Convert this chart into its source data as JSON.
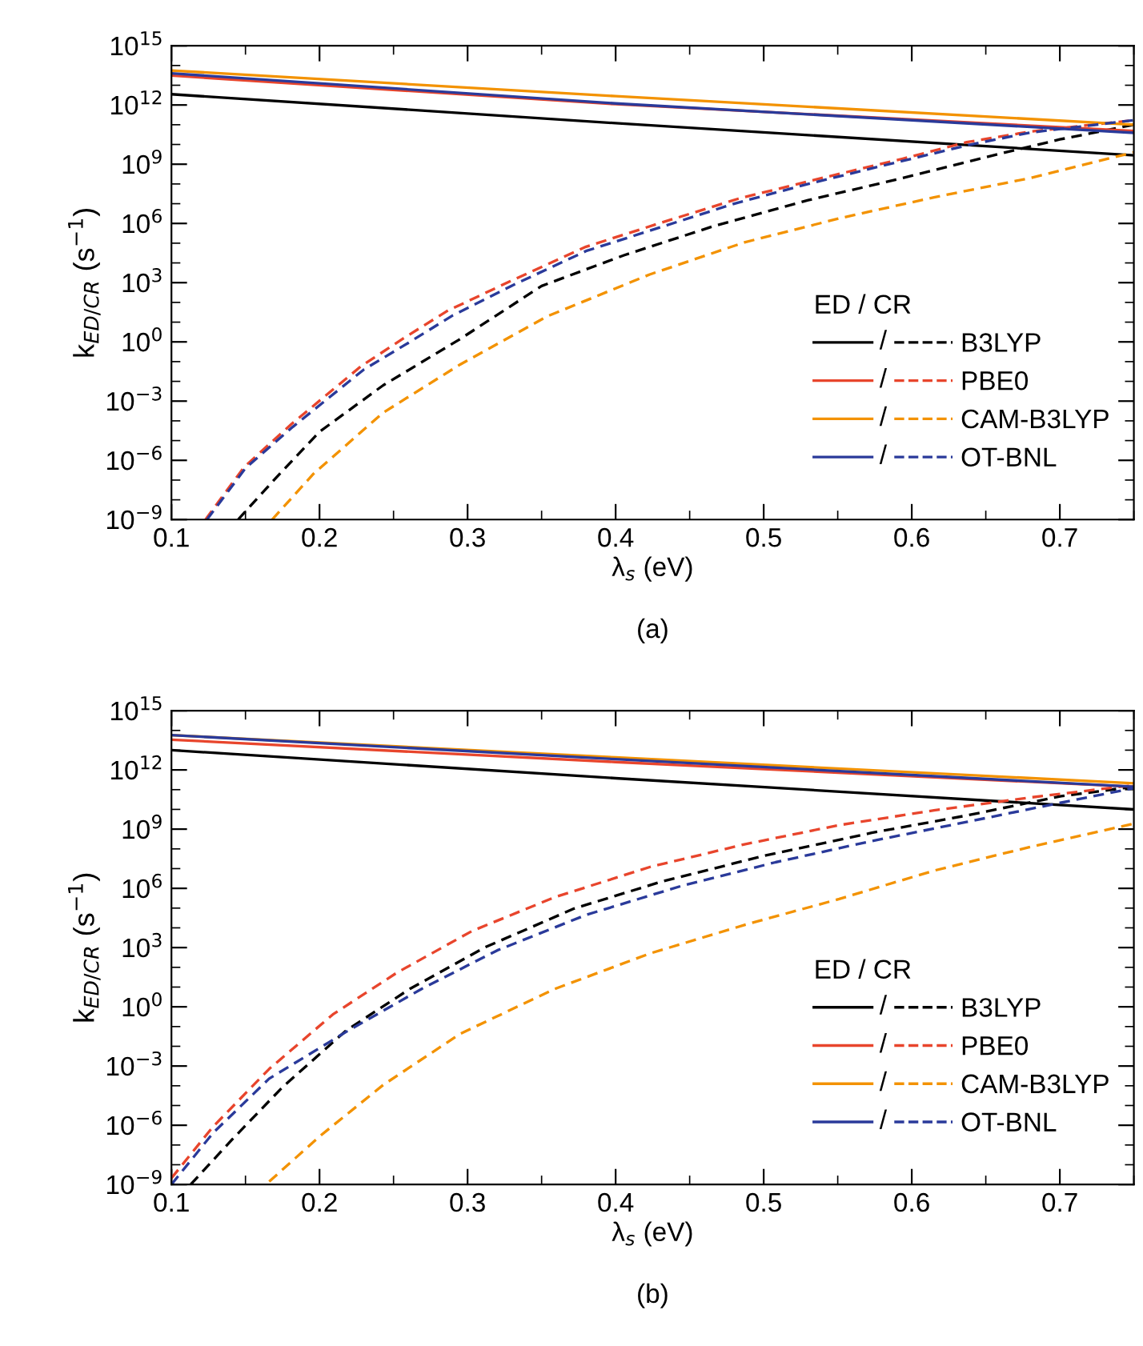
{
  "chart_data": [
    {
      "type": "line",
      "title": "(a)",
      "xlabel": "λ$_{s}$ (eV)",
      "ylabel": "k$_{ED/CR}$ (s$^{−1}$)",
      "legend_title": "ED / CR",
      "annotations": [
        "/"
      ],
      "log": "y",
      "legend": "bottom right",
      "grid": false,
      "xlim": [
        0.1,
        0.75
      ],
      "xticks": [
        0.1,
        0.2,
        0.3,
        0.4,
        0.5,
        0.6,
        0.7
      ],
      "ylim": [
        1e-09,
        1000000000000000.0
      ],
      "yticks": [
        {
          "value": 1e-09,
          "label": "10$^{−9}$"
        },
        {
          "value": 1e-06,
          "label": "10$^{−6}$"
        },
        {
          "value": 0.001,
          "label": "10$^{−3}$"
        },
        {
          "value": 1,
          "label": "10$^{0}$"
        },
        {
          "value": 1000.0,
          "label": "10$^{3}$"
        },
        {
          "value": 1000000.0,
          "label": "10$^{6}$"
        },
        {
          "value": 1000000000.0,
          "label": "10$^{9}$"
        },
        {
          "value": 1000000000000.0,
          "label": "10$^{12}$"
        },
        {
          "value": 1000000000000000.0,
          "label": "10$^{15}$"
        }
      ],
      "series": [
        {
          "color": "#000000",
          "line_style": "solid",
          "x": [
            0.1,
            0.4,
            0.75
          ],
          "values": [
            3500000000000.0,
            120000000000.0,
            2800000000.0
          ]
        },
        {
          "name": "B3LYP",
          "color": "#000000",
          "line_style": "dashed",
          "x": [
            0.145,
            0.171,
            0.2,
            0.243,
            0.295,
            0.35,
            0.406,
            0.466,
            0.53,
            0.594,
            0.658,
            0.7,
            0.75
          ],
          "values": [
            1e-09,
            1.4e-07,
            2.8e-05,
            0.0063,
            1.4,
            680,
            25000.0,
            720000.0,
            15000000.0,
            200000000.0,
            3200000000.0,
            18000000000.0,
            100000000000.0
          ]
        },
        {
          "color": "#e8452c",
          "line_style": "solid",
          "x": [
            0.1,
            0.4,
            0.75
          ],
          "values": [
            31000000000000.0,
            1100000000000.0,
            48000000000.0
          ]
        },
        {
          "name": "PBE0",
          "color": "#e8452c",
          "line_style": "dashed",
          "x": [
            0.123,
            0.149,
            0.181,
            0.228,
            0.256,
            0.286,
            0.329,
            0.38,
            0.431,
            0.483,
            0.534,
            0.594,
            0.637,
            0.68,
            0.75
          ],
          "values": [
            1e-09,
            4.5e-07,
            6.8e-05,
            0.058,
            1.4,
            36,
            1200,
            66000.0,
            1100000.0,
            18000000.0,
            160000000.0,
            1900000000.0,
            13000000000.0,
            45000000000.0,
            170000000000.0
          ]
        },
        {
          "color": "#f39200",
          "line_style": "solid",
          "x": [
            0.1,
            0.4,
            0.75
          ],
          "values": [
            56000000000000.0,
            2800000000000.0,
            100000000000.0
          ]
        },
        {
          "name": "CAM-B3LYP",
          "color": "#f39200",
          "line_style": "dashed",
          "x": [
            0.168,
            0.196,
            0.243,
            0.295,
            0.354,
            0.423,
            0.487,
            0.551,
            0.615,
            0.68,
            0.75
          ],
          "values": [
            1e-09,
            2.1e-07,
            0.00026,
            0.072,
            20,
            2600,
            110000.0,
            1800000.0,
            21000000.0,
            200000000.0,
            4000000000.0
          ]
        },
        {
          "color": "#2a3a9a",
          "line_style": "solid",
          "x": [
            0.1,
            0.4,
            0.75
          ],
          "values": [
            40000000000000.0,
            1200000000000.0,
            39000000000.0
          ]
        },
        {
          "name": "OT-BNL",
          "color": "#2a3a9a",
          "line_style": "dashed",
          "x": [
            0.124,
            0.15,
            0.182,
            0.23,
            0.26,
            0.29,
            0.33,
            0.38,
            0.43,
            0.48,
            0.53,
            0.59,
            0.64,
            0.68,
            0.75
          ],
          "values": [
            1e-09,
            4e-07,
            5e-05,
            0.04,
            0.89,
            22,
            710,
            40000.0,
            630000.0,
            10000000.0,
            100000000.0,
            1260000000.0,
            10000000000.0,
            40000000000.0,
            170000000000.0
          ]
        }
      ]
    },
    {
      "type": "line",
      "title": "(b)",
      "xlabel": "λ$_{s}$ (eV)",
      "ylabel": "k$_{ED/CR}$ (s$^{−1}$)",
      "legend_title": "ED / CR",
      "annotations": [
        "/"
      ],
      "log": "y",
      "legend": "bottom right",
      "grid": false,
      "xlim": [
        0.1,
        0.75
      ],
      "xticks": [
        0.1,
        0.2,
        0.3,
        0.4,
        0.5,
        0.6,
        0.7
      ],
      "ylim": [
        1e-09,
        1000000000000000.0
      ],
      "yticks": [
        {
          "value": 1e-09,
          "label": "10$^{−9}$"
        },
        {
          "value": 1e-06,
          "label": "10$^{−6}$"
        },
        {
          "value": 0.001,
          "label": "10$^{−3}$"
        },
        {
          "value": 1,
          "label": "10$^{0}$"
        },
        {
          "value": 1000.0,
          "label": "10$^{3}$"
        },
        {
          "value": 1000000.0,
          "label": "10$^{6}$"
        },
        {
          "value": 1000000000.0,
          "label": "10$^{9}$"
        },
        {
          "value": 1000000000000.0,
          "label": "10$^{12}$"
        },
        {
          "value": 1000000000000000.0,
          "label": "10$^{15}$"
        }
      ],
      "series": [
        {
          "color": "#000000",
          "line_style": "solid",
          "x": [
            0.1,
            0.4,
            0.75
          ],
          "values": [
            10000000000000.0,
            380000000000.0,
            10000000000.0
          ]
        },
        {
          "name": "B3LYP",
          "color": "#000000",
          "line_style": "dashed",
          "x": [
            0.113,
            0.141,
            0.175,
            0.218,
            0.261,
            0.312,
            0.372,
            0.431,
            0.5,
            0.573,
            0.637,
            0.701,
            0.75
          ],
          "values": [
            1e-09,
            1.9e-07,
            8.5e-05,
            0.063,
            8.1,
            1050,
            95000.0,
            2200000.0,
            44000000.0,
            650000000.0,
            4900000000.0,
            47000000000.0,
            140000000000.0
          ]
        },
        {
          "color": "#e8452c",
          "line_style": "solid",
          "x": [
            0.1,
            0.4,
            0.75
          ],
          "values": [
            34000000000000.0,
            2500000000000.0,
            140000000000.0
          ]
        },
        {
          "name": "PBE0",
          "color": "#e8452c",
          "line_style": "dashed",
          "x": [
            0.1,
            0.128,
            0.166,
            0.209,
            0.252,
            0.303,
            0.359,
            0.423,
            0.487,
            0.551,
            0.615,
            0.68,
            0.75
          ],
          "values": [
            2.1e-09,
            8.3e-07,
            0.00071,
            0.41,
            52,
            6900,
            360000.0,
            12000000.0,
            170000000.0,
            1600000000.0,
            8900000000.0,
            40000000000.0,
            170000000000.0
          ]
        },
        {
          "color": "#f39200",
          "line_style": "solid",
          "x": [
            0.1,
            0.4,
            0.75
          ],
          "values": [
            58000000000000.0,
            4300000000000.0,
            210000000000.0
          ]
        },
        {
          "name": "CAM-B3LYP",
          "color": "#f39200",
          "line_style": "dashed",
          "x": [
            0.166,
            0.2,
            0.243,
            0.295,
            0.359,
            0.423,
            0.487,
            0.551,
            0.615,
            0.68,
            0.75
          ],
          "values": [
            1.4e-09,
            2.7e-07,
            0.00011,
            0.043,
            8.1,
            500,
            14000.0,
            290000.0,
            7900000.0,
            126000000.0,
            1900000000.0
          ]
        },
        {
          "color": "#2a3a9a",
          "line_style": "solid",
          "x": [
            0.1,
            0.4,
            0.75
          ],
          "values": [
            58000000000000.0,
            3500000000000.0,
            140000000000.0
          ]
        },
        {
          "name": "OT-BNL",
          "color": "#2a3a9a",
          "line_style": "dashed",
          "x": [
            0.1,
            0.128,
            0.166,
            0.218,
            0.269,
            0.32,
            0.38,
            0.444,
            0.508,
            0.573,
            0.637,
            0.701,
            0.75
          ],
          "values": [
            1e-09,
            4e-07,
            0.00023,
            0.054,
            8.1,
            720,
            45000.0,
            1300000.0,
            21000000.0,
            250000000.0,
            2300000000.0,
            22000000000.0,
            120000000000.0
          ]
        }
      ]
    }
  ]
}
